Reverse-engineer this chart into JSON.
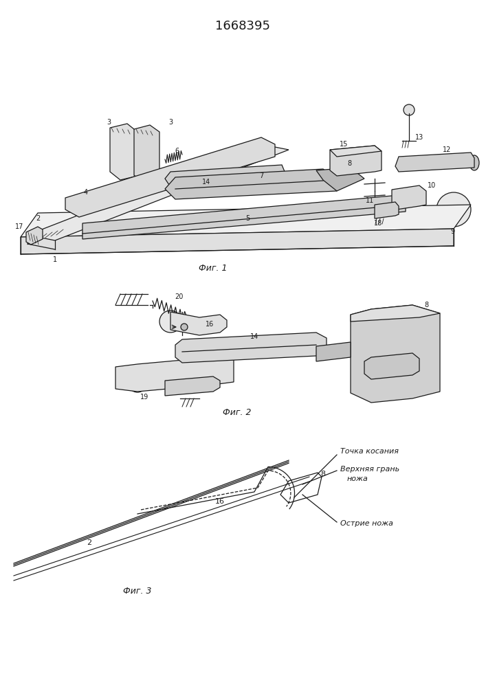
{
  "title": "1668395",
  "background_color": "#ffffff",
  "line_color": "#1a1a1a",
  "lw": 0.9,
  "fig1_caption": "Фиг. 1",
  "fig2_caption": "Фиг. 2",
  "fig3_caption": "Фиг. 3",
  "ann_tochka": "Точка косания",
  "ann_verhnyaya": "Верхняя грань",
  "ann_nozha": "ножа",
  "ann_ostrie": "Острие ножа"
}
